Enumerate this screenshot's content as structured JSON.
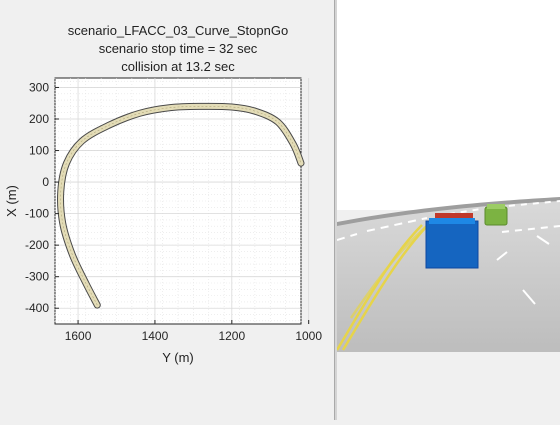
{
  "plot": {
    "title_lines": [
      "scenario_LFACC_03_Curve_StopnGo",
      "scenario stop time = 32 sec",
      "collision at 13.2 sec"
    ],
    "xlabel": "Y (m)",
    "ylabel": "X (m)",
    "x_ticks": [
      "1600",
      "1400",
      "1200",
      "1000"
    ],
    "y_ticks": [
      "300",
      "200",
      "100",
      "0",
      "-100",
      "-200",
      "-300",
      "-400"
    ]
  },
  "chart_data": {
    "type": "line",
    "title": "scenario_LFACC_03_Curve_StopnGo",
    "xlabel": "Y (m)",
    "ylabel": "X (m)",
    "x_reversed": true,
    "xlim": [
      1660,
      1020
    ],
    "ylim": [
      -450,
      330
    ],
    "grid": true,
    "series": [
      {
        "x": [
          1550,
          1580,
          1615,
          1640,
          1645,
          1630,
          1590,
          1520,
          1440,
          1360,
          1280,
          1200,
          1140,
          1080,
          1040,
          1020
        ],
        "y": [
          -390,
          -320,
          -230,
          -130,
          -30,
          60,
          130,
          180,
          218,
          236,
          240,
          238,
          225,
          190,
          120,
          60
        ]
      }
    ]
  },
  "scene": {
    "ego_car_color": "#1565c0",
    "lead_car_color": "#c0392b",
    "side_car_color": "#7cb342",
    "lane_marking_color": "#e6d44a"
  }
}
